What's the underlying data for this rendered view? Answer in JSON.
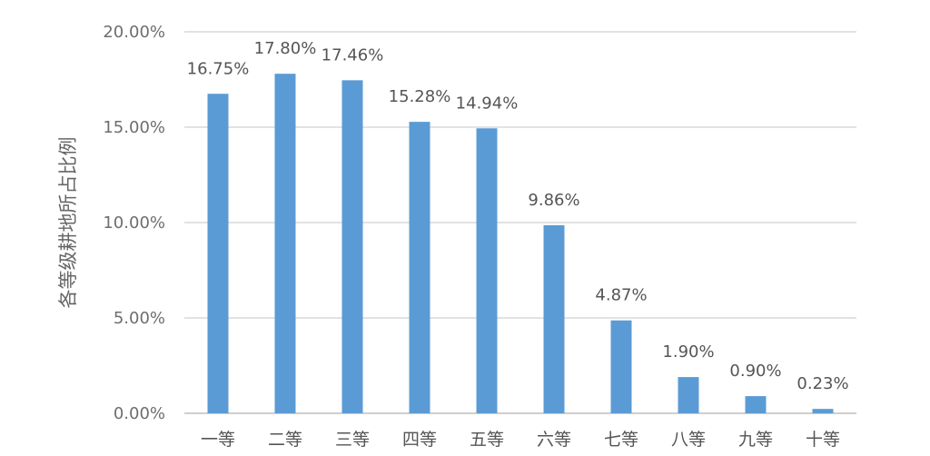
{
  "chart_data": {
    "type": "bar",
    "title": "",
    "xlabel": "",
    "ylabel": "各等级耕地所占比例",
    "categories": [
      "一等",
      "二等",
      "三等",
      "四等",
      "五等",
      "六等",
      "七等",
      "八等",
      "九等",
      "十等"
    ],
    "values": [
      16.75,
      17.8,
      17.46,
      15.28,
      14.94,
      9.86,
      4.87,
      1.9,
      0.9,
      0.23
    ],
    "data_labels": [
      "16.75%",
      "17.80%",
      "17.46%",
      "15.28%",
      "14.94%",
      "9.86%",
      "4.87%",
      "1.90%",
      "0.90%",
      "0.23%"
    ],
    "ylim": [
      0,
      20
    ],
    "yticks": [
      0,
      5,
      10,
      15,
      20
    ],
    "ytick_labels": [
      "0.00%",
      "5.00%",
      "10.00%",
      "15.00%",
      "20.00%"
    ],
    "grid": true,
    "legend": "none",
    "bar_color": "#5b9bd5"
  }
}
